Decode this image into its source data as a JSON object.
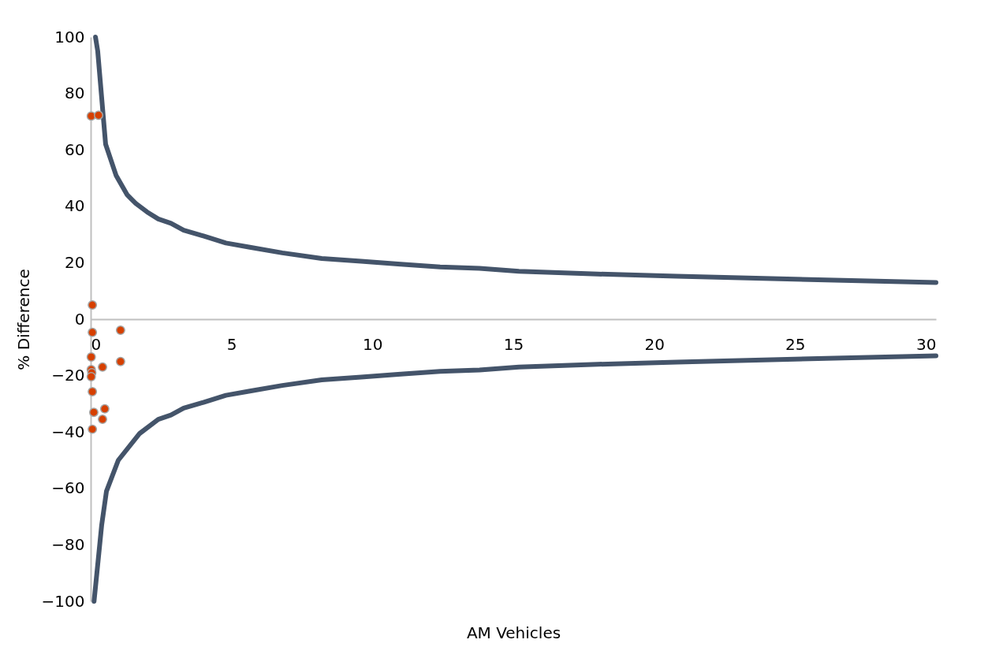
{
  "chart_data": {
    "type": "scatter",
    "xlabel": "AM Vehicles",
    "ylabel": "% Difference",
    "xlim": [
      0,
      30
    ],
    "ylim": [
      -100,
      100
    ],
    "xticks": [
      0,
      5,
      10,
      15,
      20,
      25,
      30
    ],
    "yticks": [
      -100,
      -80,
      -60,
      -40,
      -20,
      0,
      20,
      40,
      60,
      80,
      100
    ],
    "grid": false,
    "marker": "circle",
    "series": [
      {
        "type": "line",
        "marker": "none",
        "color": "#44546a",
        "x": [
          0.17,
          0.25,
          0.53,
          0.9,
          1.3,
          1.6,
          2,
          2.4,
          2.85,
          3.3,
          4,
          4.8,
          5.65,
          6.8,
          8.2,
          9.6,
          11,
          12.4,
          13.8,
          15.2,
          18,
          20.8,
          23.6,
          26.4,
          30
        ],
        "values": [
          100,
          95,
          62,
          51,
          44,
          41,
          38,
          35.5,
          34,
          31.5,
          29.5,
          27,
          25.5,
          23.5,
          21.5,
          20.5,
          19.5,
          18.5,
          18,
          17,
          16,
          15.2,
          14.5,
          13.8,
          13
        ]
      },
      {
        "type": "line",
        "marker": "none",
        "color": "#44546a",
        "x": [
          0.12,
          0.39,
          0.56,
          0.98,
          1.74,
          2.4,
          2.85,
          3.3,
          4,
          4.8,
          5.65,
          6.8,
          8.2,
          9.6,
          11,
          12.4,
          13.8,
          15.2,
          18,
          20.8,
          23.6,
          26.4,
          30
        ],
        "values": [
          -100,
          -73,
          -61,
          -50,
          -40.5,
          -35.5,
          -34,
          -31.5,
          -29.5,
          -27,
          -25.5,
          -23.5,
          -21.5,
          -20.5,
          -19.5,
          -18.5,
          -18,
          -17,
          -16,
          -15.2,
          -14.5,
          -13.8,
          -13
        ]
      },
      {
        "color": "#d64000",
        "x": [
          0.02,
          0.28,
          0.06,
          0.06,
          1.06,
          0.02,
          0.02,
          0.04,
          0.02,
          0.42,
          1.06,
          0.06,
          0.11,
          0.5,
          0.42,
          0.06
        ],
        "values": [
          72,
          72.3,
          5,
          -4.7,
          -3.9,
          -13.4,
          -17.9,
          -19,
          -20.4,
          -17,
          -15,
          -25.7,
          -33,
          -31.8,
          -35.5,
          -39
        ]
      }
    ]
  }
}
